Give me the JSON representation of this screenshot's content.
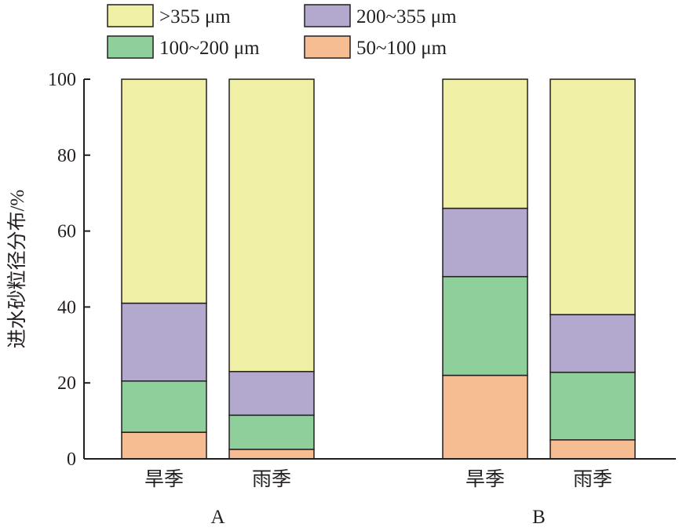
{
  "chart_data": {
    "type": "bar",
    "stacked": true,
    "ylabel": "进水砂粒径分布/%",
    "xlabel": "",
    "ylim": [
      0,
      100
    ],
    "yticks": [
      "0",
      "20",
      "40",
      "60",
      "80",
      "100"
    ],
    "groups": [
      {
        "name": "A",
        "categories": [
          "旱季",
          "雨季"
        ]
      },
      {
        "name": "B",
        "categories": [
          "旱季",
          "雨季"
        ]
      }
    ],
    "legend_position": "top",
    "grid": false,
    "series": [
      {
        "name": "50~100 μm",
        "color": "#f7bd92",
        "values": [
          7,
          2.5,
          22,
          5
        ]
      },
      {
        "name": "100~200 μm",
        "color": "#8ecf9b",
        "values": [
          13.5,
          9,
          26,
          17.8
        ]
      },
      {
        "name": ">355 μm",
        "color": "#eff0a5",
        "values": [
          59,
          77,
          34,
          62
        ]
      },
      {
        "name": "200~355 μm",
        "color": "#b3a8cd",
        "values": [
          20.5,
          11.5,
          18,
          15.2
        ]
      }
    ],
    "stack_order": [
      "50~100 μm",
      "100~200 μm",
      "200~355 μm",
      ">355 μm"
    ],
    "legend_order": [
      ">355 μm",
      "200~355 μm",
      "100~200 μm",
      "50~100 μm"
    ]
  }
}
